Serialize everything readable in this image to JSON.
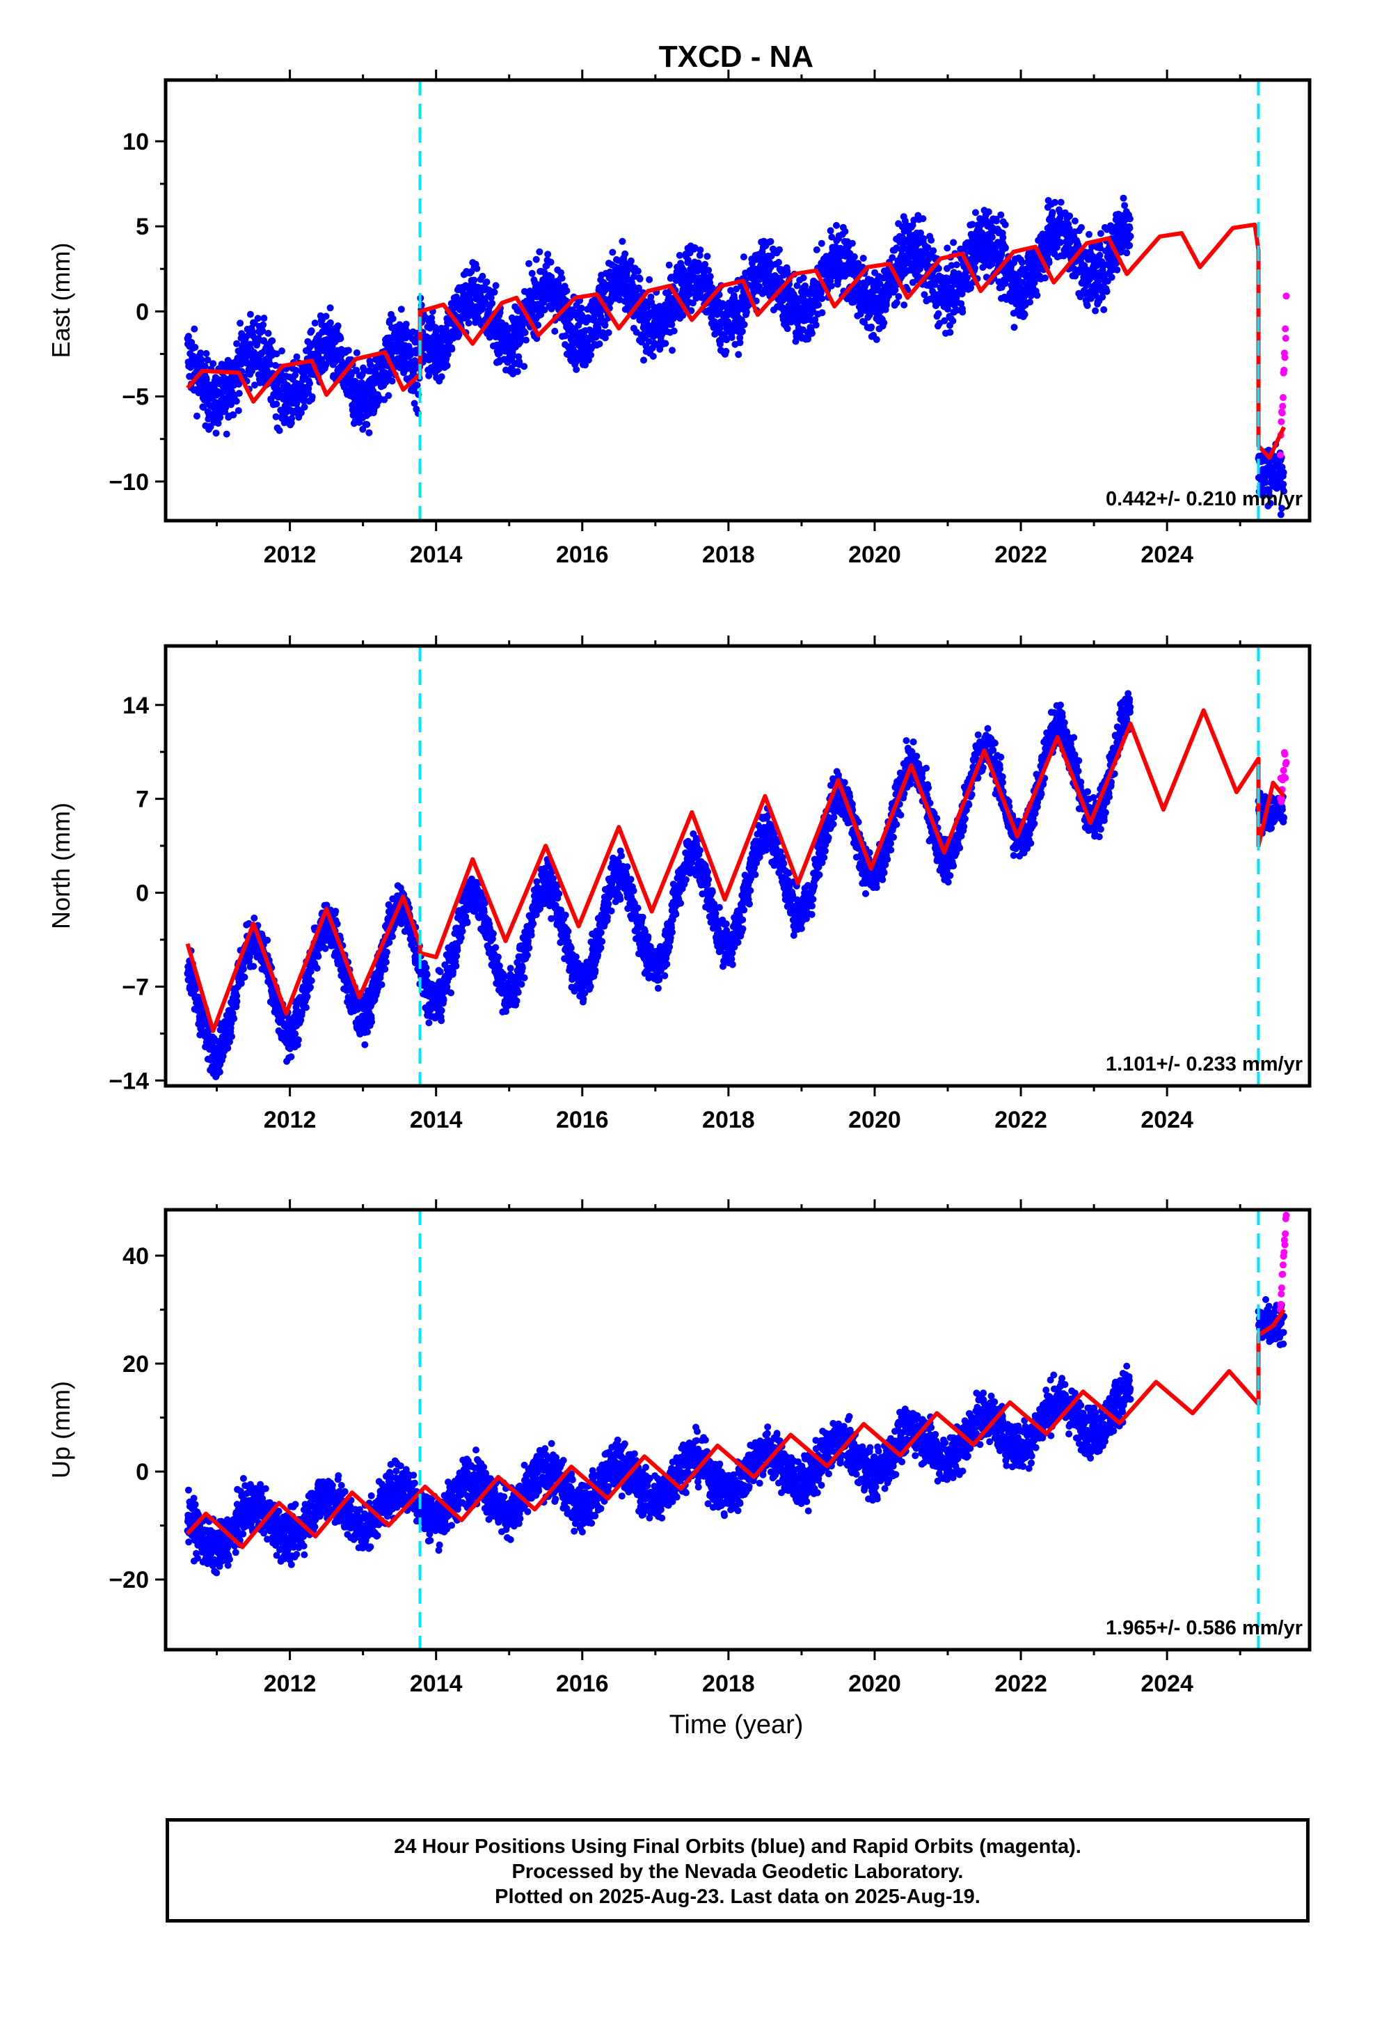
{
  "chart_data": {
    "type": "scatter",
    "title": "TXCD - NA",
    "xlabel": "Time (year)",
    "xlim": [
      2010.3,
      2025.95
    ],
    "x_ticks": [
      "2012",
      "2014",
      "2016",
      "2018",
      "2020",
      "2022",
      "2024"
    ],
    "equipment_changes": [
      2013.78,
      2025.25
    ],
    "panels": [
      {
        "ylabel": "East (mm)",
        "ylim": [
          -12.3,
          13.6
        ],
        "y_ticks": [
          "10",
          "5",
          "0",
          "-5",
          "-10"
        ],
        "rate": "0.442+/- 0.210 mm/yr",
        "final_orbits": {
          "start": 2010.6,
          "end": 2023.5,
          "trend": [
            [
              2010.6,
              -3.8
            ],
            [
              2013.78,
              -3.5
            ],
            [
              2013.78,
              -0.8
            ],
            [
              2018.4,
              1.0
            ],
            [
              2023.5,
              3.8
            ]
          ],
          "annual_amp": 1.5,
          "noise": 1.8,
          "gap_end": 2025.25,
          "tail_end": 2025.6,
          "tail_level": -9.5
        },
        "rapid_orbits": {
          "start": 2025.55,
          "end": 2025.63,
          "from": -8.5,
          "to": 0.0
        },
        "model": [
          [
            2010.6,
            -4.5
          ],
          [
            2010.8,
            -3.5
          ],
          [
            2011.3,
            -3.6
          ],
          [
            2011.5,
            -5.3
          ],
          [
            2011.9,
            -3.2
          ],
          [
            2012.3,
            -2.9
          ],
          [
            2012.5,
            -4.9
          ],
          [
            2012.9,
            -2.8
          ],
          [
            2013.3,
            -2.4
          ],
          [
            2013.55,
            -4.6
          ],
          [
            2013.78,
            -3.7
          ],
          [
            2013.78,
            0.0
          ],
          [
            2014.1,
            0.4
          ],
          [
            2014.5,
            -1.9
          ],
          [
            2014.9,
            0.5
          ],
          [
            2015.1,
            0.8
          ],
          [
            2015.4,
            -1.4
          ],
          [
            2015.9,
            0.8
          ],
          [
            2016.2,
            1.0
          ],
          [
            2016.5,
            -1.0
          ],
          [
            2016.9,
            1.2
          ],
          [
            2017.2,
            1.5
          ],
          [
            2017.5,
            -0.5
          ],
          [
            2017.9,
            1.5
          ],
          [
            2018.2,
            1.8
          ],
          [
            2018.4,
            -0.2
          ],
          [
            2018.9,
            2.2
          ],
          [
            2019.2,
            2.4
          ],
          [
            2019.45,
            0.3
          ],
          [
            2019.9,
            2.6
          ],
          [
            2020.2,
            2.8
          ],
          [
            2020.45,
            0.8
          ],
          [
            2020.9,
            3.1
          ],
          [
            2021.2,
            3.4
          ],
          [
            2021.45,
            1.2
          ],
          [
            2021.9,
            3.5
          ],
          [
            2022.2,
            3.8
          ],
          [
            2022.45,
            1.7
          ],
          [
            2022.9,
            4.0
          ],
          [
            2023.2,
            4.3
          ],
          [
            2023.45,
            2.2
          ],
          [
            2023.9,
            4.4
          ],
          [
            2024.2,
            4.6
          ],
          [
            2024.45,
            2.6
          ],
          [
            2024.9,
            4.9
          ],
          [
            2025.2,
            5.1
          ],
          [
            2025.25,
            3.6
          ],
          [
            2025.25,
            -7.9
          ],
          [
            2025.4,
            -8.6
          ],
          [
            2025.6,
            -6.8
          ]
        ]
      },
      {
        "ylabel": "North (mm)",
        "ylim": [
          -14.4,
          18.4
        ],
        "y_ticks": [
          "14",
          "7",
          "0",
          "-7",
          "-14"
        ],
        "rate": "1.101+/- 0.233 mm/yr",
        "final_orbits": {
          "start": 2010.6,
          "end": 2023.5,
          "trend": [
            [
              2010.6,
              -8.5
            ],
            [
              2013.78,
              -4.5
            ],
            [
              2016.5,
              -2.5
            ],
            [
              2018.4,
              0.5
            ],
            [
              2020.0,
              5.0
            ],
            [
              2021.5,
              7.0
            ],
            [
              2023.5,
              10.0
            ]
          ],
          "annual_amp": 3.8,
          "noise": 1.5,
          "gap_end": 2025.25,
          "tail_end": 2025.6,
          "tail_level": 6.0
        },
        "rapid_orbits": {
          "start": 2025.55,
          "end": 2025.63,
          "from": 7.5,
          "to": 10.2
        },
        "model": [
          [
            2010.6,
            -3.8
          ],
          [
            2010.95,
            -10.3
          ],
          [
            2011.5,
            -2.3
          ],
          [
            2011.95,
            -9.0
          ],
          [
            2012.5,
            -1.2
          ],
          [
            2012.95,
            -7.8
          ],
          [
            2013.55,
            -0.3
          ],
          [
            2013.78,
            -3.9
          ],
          [
            2013.78,
            -4.5
          ],
          [
            2014.0,
            -4.8
          ],
          [
            2014.5,
            2.5
          ],
          [
            2014.95,
            -3.6
          ],
          [
            2015.5,
            3.5
          ],
          [
            2015.95,
            -2.5
          ],
          [
            2016.5,
            4.9
          ],
          [
            2016.95,
            -1.4
          ],
          [
            2017.5,
            6.0
          ],
          [
            2017.95,
            -0.5
          ],
          [
            2018.5,
            7.2
          ],
          [
            2018.95,
            0.7
          ],
          [
            2019.5,
            8.4
          ],
          [
            2019.95,
            1.8
          ],
          [
            2020.5,
            9.5
          ],
          [
            2020.95,
            3.0
          ],
          [
            2021.5,
            10.6
          ],
          [
            2021.95,
            4.2
          ],
          [
            2022.5,
            11.6
          ],
          [
            2022.95,
            5.2
          ],
          [
            2023.5,
            12.6
          ],
          [
            2023.95,
            6.2
          ],
          [
            2024.5,
            13.6
          ],
          [
            2024.95,
            7.5
          ],
          [
            2025.25,
            10.0
          ],
          [
            2025.25,
            3.5
          ],
          [
            2025.45,
            8.2
          ],
          [
            2025.6,
            7.2
          ]
        ]
      },
      {
        "ylabel": "Up (mm)",
        "ylim": [
          -33.0,
          48.5
        ],
        "y_ticks": [
          "40",
          "20",
          "0",
          "-20"
        ],
        "rate": "1.965+/- 0.586 mm/yr",
        "final_orbits": {
          "start": 2010.6,
          "end": 2023.5,
          "trend": [
            [
              2010.6,
              -11.5
            ],
            [
              2013.78,
              -5.5
            ],
            [
              2018.4,
              0.0
            ],
            [
              2020.0,
              3.0
            ],
            [
              2023.5,
              12.0
            ]
          ],
          "annual_amp": 3.5,
          "noise": 4.0,
          "gap_end": 2025.25,
          "tail_end": 2025.6,
          "tail_level": 27.0
        },
        "rapid_orbits": {
          "start": 2025.55,
          "end": 2025.63,
          "from": 30.0,
          "to": 47.0
        },
        "model": [
          [
            2010.6,
            -11.5
          ],
          [
            2010.85,
            -7.8
          ],
          [
            2011.35,
            -14.0
          ],
          [
            2011.85,
            -5.8
          ],
          [
            2012.35,
            -12.0
          ],
          [
            2012.85,
            -3.9
          ],
          [
            2013.35,
            -10.0
          ],
          [
            2013.85,
            -2.8
          ],
          [
            2014.35,
            -9.0
          ],
          [
            2014.85,
            -1.0
          ],
          [
            2015.35,
            -7.0
          ],
          [
            2015.85,
            0.9
          ],
          [
            2016.35,
            -5.0
          ],
          [
            2016.85,
            2.8
          ],
          [
            2017.35,
            -3.2
          ],
          [
            2017.85,
            4.8
          ],
          [
            2018.35,
            -1.0
          ],
          [
            2018.85,
            6.8
          ],
          [
            2019.35,
            1.0
          ],
          [
            2019.85,
            8.8
          ],
          [
            2020.35,
            3.0
          ],
          [
            2020.85,
            10.8
          ],
          [
            2021.35,
            5.0
          ],
          [
            2021.85,
            12.8
          ],
          [
            2022.35,
            7.0
          ],
          [
            2022.85,
            14.8
          ],
          [
            2023.35,
            9.0
          ],
          [
            2023.85,
            16.6
          ],
          [
            2024.35,
            10.8
          ],
          [
            2024.85,
            18.6
          ],
          [
            2025.25,
            12.5
          ],
          [
            2025.25,
            25.3
          ],
          [
            2025.45,
            27.0
          ],
          [
            2025.6,
            30.0
          ]
        ]
      }
    ]
  },
  "footer": {
    "line1": "24 Hour Positions Using Final Orbits (blue) and Rapid Orbits (magenta).",
    "line2": "Processed by the Nevada Geodetic Laboratory.",
    "line3": "Plotted on 2025-Aug-23. Last data on 2025-Aug-19."
  },
  "colors": {
    "final_orbits": "#0000ff",
    "rapid_orbits": "#ff00ff",
    "model": "#ff0000",
    "equipment_change": "#00e5ff",
    "frame": "#000000"
  }
}
